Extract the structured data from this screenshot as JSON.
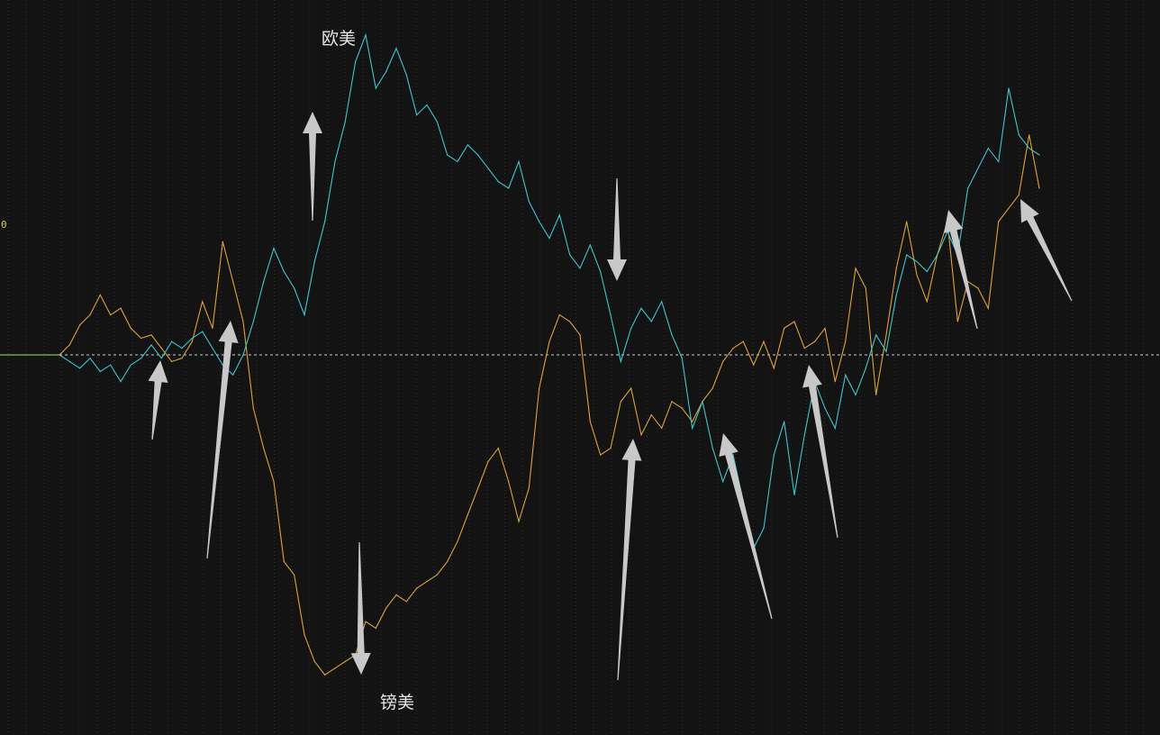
{
  "chart_data": {
    "type": "line",
    "x_index_range": [
      0,
      300
    ],
    "ylim": [
      -100,
      100
    ],
    "zero_label": "0",
    "grid": "vertical-dotted",
    "baseline": 0,
    "colors": {
      "background": "#131313",
      "grid": "#2f2f2f",
      "baseline": "#cfcfcf",
      "eur": "#3ec6cf",
      "gbp": "#e0a23a",
      "arrow": "#c8c8c8"
    },
    "series": [
      {
        "name": "欧美",
        "key": "eur",
        "x": [
          0,
          3,
          6,
          9,
          12,
          15,
          18,
          21,
          24,
          27,
          30,
          33,
          36,
          39,
          42,
          45,
          48,
          51,
          54,
          57,
          60,
          63,
          66,
          69,
          72,
          75,
          78,
          81,
          84,
          87,
          90,
          93,
          96,
          99,
          102,
          105,
          108,
          111,
          114,
          117,
          120,
          123,
          126,
          129,
          132,
          135,
          138,
          141,
          144,
          147,
          150,
          153,
          156,
          159,
          162,
          165,
          168,
          171,
          174,
          177,
          180,
          183,
          186,
          189,
          192,
          195,
          198,
          201,
          204,
          207,
          210,
          213,
          216,
          219,
          222,
          225,
          228,
          231,
          234,
          237,
          240,
          243,
          246,
          249,
          252,
          255,
          258,
          261,
          264,
          267,
          270,
          273,
          276,
          279,
          282,
          285,
          288
        ],
        "values": [
          0,
          -2,
          -4,
          -1,
          -5,
          -3,
          -8,
          -3,
          -1,
          3,
          -1,
          4,
          2,
          5,
          7,
          2,
          -3,
          -6,
          0,
          10,
          22,
          32,
          25,
          20,
          12,
          28,
          40,
          58,
          70,
          88,
          96,
          80,
          85,
          92,
          84,
          72,
          75,
          70,
          60,
          58,
          63,
          60,
          56,
          52,
          50,
          58,
          46,
          40,
          35,
          42,
          30,
          26,
          33,
          25,
          12,
          -2,
          8,
          14,
          10,
          16,
          6,
          -1,
          -22,
          -14,
          -28,
          -38,
          -30,
          -44,
          -58,
          -52,
          -30,
          -20,
          -42,
          -24,
          -8,
          -16,
          -22,
          -6,
          -12,
          -4,
          6,
          1,
          18,
          30,
          28,
          25,
          30,
          37,
          30,
          50,
          56,
          62,
          58,
          80,
          66,
          62,
          60
        ]
      },
      {
        "name": "镑美",
        "key": "gbp",
        "x": [
          0,
          3,
          6,
          9,
          12,
          15,
          18,
          21,
          24,
          27,
          30,
          33,
          36,
          39,
          42,
          45,
          48,
          51,
          54,
          57,
          60,
          63,
          66,
          69,
          72,
          75,
          78,
          81,
          84,
          87,
          90,
          93,
          96,
          99,
          102,
          105,
          108,
          111,
          114,
          117,
          120,
          123,
          126,
          129,
          132,
          135,
          138,
          141,
          144,
          147,
          150,
          153,
          156,
          159,
          162,
          165,
          168,
          171,
          174,
          177,
          180,
          183,
          186,
          189,
          192,
          195,
          198,
          201,
          204,
          207,
          210,
          213,
          216,
          219,
          222,
          225,
          228,
          231,
          234,
          237,
          240,
          243,
          246,
          249,
          252,
          255,
          258,
          261,
          264,
          267,
          270,
          273,
          276,
          279,
          282,
          285,
          288
        ],
        "values": [
          0,
          3,
          9,
          12,
          18,
          12,
          14,
          8,
          5,
          6,
          2,
          -2,
          -1,
          4,
          16,
          8,
          34,
          22,
          10,
          -16,
          -28,
          -38,
          -62,
          -66,
          -84,
          -92,
          -96,
          -94,
          -92,
          -90,
          -80,
          -82,
          -76,
          -72,
          -74,
          -70,
          -68,
          -66,
          -62,
          -56,
          -48,
          -40,
          -32,
          -28,
          -38,
          -50,
          -40,
          -10,
          4,
          12,
          10,
          6,
          -20,
          -30,
          -28,
          -14,
          -10,
          -24,
          -18,
          -22,
          -14,
          -16,
          -20,
          -14,
          -10,
          -2,
          2,
          4,
          -3,
          4,
          -4,
          8,
          10,
          2,
          4,
          8,
          -8,
          4,
          26,
          20,
          -12,
          6,
          26,
          40,
          24,
          16,
          30,
          40,
          10,
          22,
          20,
          14,
          40,
          44,
          48,
          66,
          50
        ]
      }
    ],
    "annotations": {
      "eur_label": "欧美",
      "gbp_label": "镑美"
    }
  }
}
